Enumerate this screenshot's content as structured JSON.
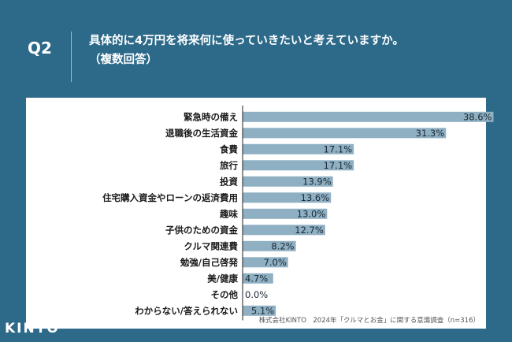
{
  "header": {
    "qnum": "Q2",
    "question_line1": "具体的に4万円を将来何に使っていきたいと考えていますか。",
    "question_line2": "（複数回答）"
  },
  "footer": {
    "note": "株式会社KINTO　2024年「クルマとお金」に関する意識調査（n=316）",
    "logo": "KINTO"
  },
  "colors": {
    "background": "#2d6a8a",
    "bar": "#8fb0c3",
    "axis": "#222222"
  },
  "chart_data": {
    "type": "bar",
    "orientation": "horizontal",
    "categories": [
      "緊急時の備え",
      "退職後の生活資金",
      "食費",
      "旅行",
      "投資",
      "住宅購入資金やローンの返済費用",
      "趣味",
      "子供のための資金",
      "クルマ関連費",
      "勉強/自己啓発",
      "美/健康",
      "その他",
      "わからない/答えられない"
    ],
    "values": [
      38.6,
      31.3,
      17.1,
      17.1,
      13.9,
      13.6,
      13.0,
      12.7,
      8.2,
      7.0,
      4.7,
      0.0,
      5.1
    ],
    "value_labels": [
      "38.6%",
      "31.3%",
      "17.1%",
      "17.1%",
      "13.9%",
      "13.6%",
      "13.0%",
      "12.7%",
      "8.2%",
      "7.0%",
      "4.7%",
      "0.0%",
      "5.1%"
    ],
    "xlim": [
      0,
      40
    ],
    "grid": false
  }
}
